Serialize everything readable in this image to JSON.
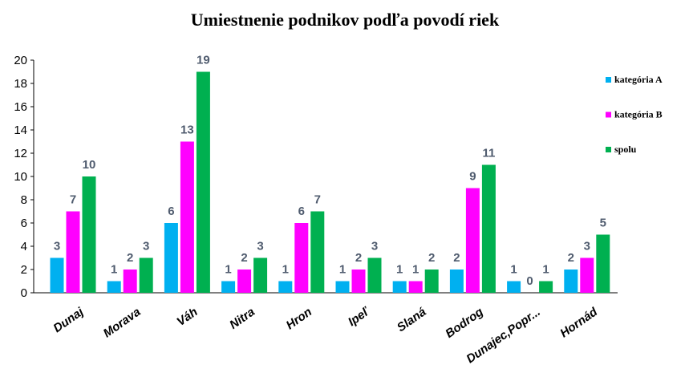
{
  "chart_data": {
    "type": "bar",
    "title": "Umiestnenie podnikov podľa povodí riek",
    "categories": [
      "Dunaj",
      "Morava",
      "Váh",
      "Nitra",
      "Hron",
      "Ipeľ",
      "Slaná",
      "Bodrog",
      "Dunajec,Popr...",
      "Hornád"
    ],
    "series": [
      {
        "name": "kategória A",
        "color": "#00b0f0",
        "values": [
          3,
          1,
          6,
          1,
          1,
          1,
          1,
          2,
          1,
          2
        ]
      },
      {
        "name": "kategória B",
        "color": "#ff00ff",
        "values": [
          7,
          2,
          13,
          2,
          6,
          2,
          1,
          9,
          0,
          3
        ]
      },
      {
        "name": "spolu",
        "color": "#00b050",
        "values": [
          10,
          3,
          19,
          3,
          7,
          3,
          2,
          11,
          1,
          5
        ]
      }
    ],
    "ylim": [
      0,
      20
    ],
    "yticks": [
      0,
      2,
      4,
      6,
      8,
      10,
      12,
      14,
      16,
      18,
      20
    ],
    "legend": "right"
  }
}
